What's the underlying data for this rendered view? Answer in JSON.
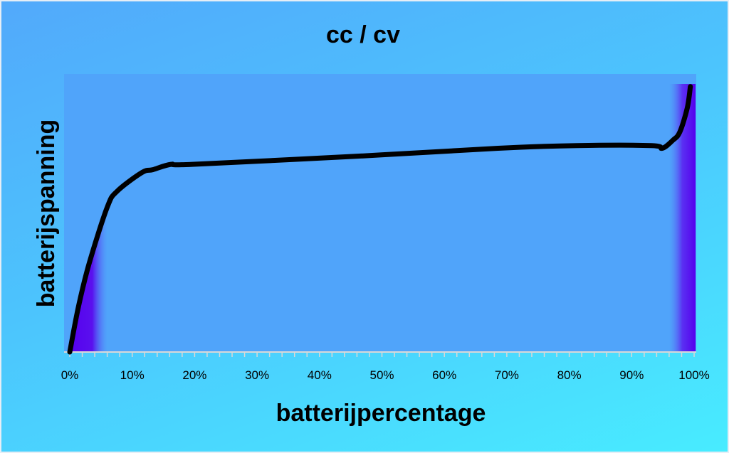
{
  "chart_data": {
    "type": "line",
    "title": "cc / cv",
    "xlabel": "batterijpercentage",
    "ylabel": "batterijspanning",
    "xlim": [
      0,
      100
    ],
    "ylim": [
      0,
      100
    ],
    "x_tick_labels": [
      "0%",
      "10%",
      "20%",
      "30%",
      "40%",
      "50%",
      "60%",
      "70%",
      "80%",
      "90%",
      "100%"
    ],
    "x_ticks": [
      0,
      10,
      20,
      30,
      40,
      50,
      60,
      70,
      80,
      90,
      100
    ],
    "minor_tick_step": 2,
    "grid": false,
    "series": [
      {
        "name": "batterijspanning",
        "x": [
          0,
          1.4,
          3.1,
          6.0,
          7.6,
          11.6,
          13.3,
          16.2,
          19.6,
          45.8,
          68.6,
          81.2,
          93.2,
          94.9,
          96.6,
          97.7,
          98.9,
          99.4
        ],
        "y": [
          0,
          17,
          33,
          54,
          60,
          67,
          68,
          70,
          70,
          73,
          76,
          77,
          77,
          76,
          79,
          82,
          91,
          99
        ]
      }
    ],
    "shaded_regions": [
      {
        "name": "cc-start",
        "x": [
          0,
          6
        ]
      },
      {
        "name": "cv-end",
        "x": [
          96,
          100
        ]
      }
    ],
    "colors": {
      "plot_bg": "#50a4fa",
      "shade": "#5500ee",
      "line": "#000000"
    }
  }
}
